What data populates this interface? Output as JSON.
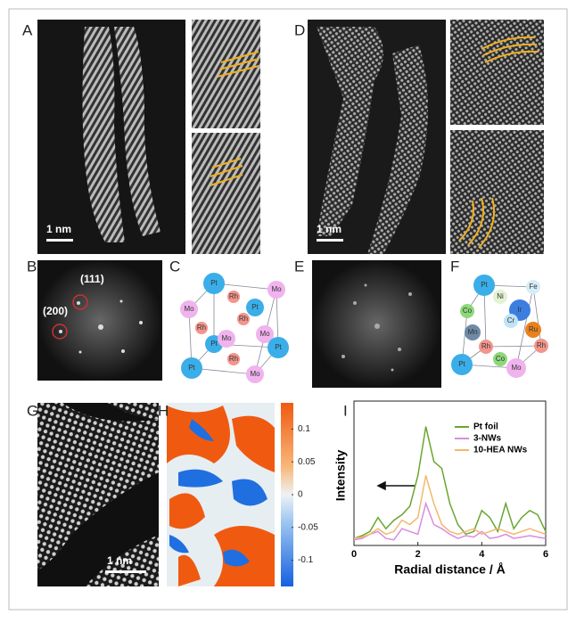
{
  "panel_labels": [
    "A",
    "B",
    "C",
    "D",
    "E",
    "F",
    "G",
    "H",
    "I"
  ],
  "scale_bars": [
    "1 nm",
    "1 nm",
    "1 nm"
  ],
  "fft_labels": [
    "(111)",
    "(200)"
  ],
  "crystal_c": [
    {
      "label": "Pt",
      "color": "#3aaee8"
    },
    {
      "label": "Mo",
      "color": "#f0b3ee"
    },
    {
      "label": "Rh",
      "color": "#f2958c"
    },
    {
      "label": "Mo",
      "color": "#f0b3ee"
    },
    {
      "label": "Pt",
      "color": "#3aaee8"
    },
    {
      "label": "Rh",
      "color": "#f2958c"
    },
    {
      "label": "Rh",
      "color": "#f2958c"
    },
    {
      "label": "Mo",
      "color": "#f0b3ee"
    },
    {
      "label": "Pt",
      "color": "#3aaee8"
    },
    {
      "label": "Mo",
      "color": "#f0b3ee"
    },
    {
      "label": "Rh",
      "color": "#f2958c"
    },
    {
      "label": "Pt",
      "color": "#3aaee8"
    },
    {
      "label": "Pt",
      "color": "#3aaee8"
    },
    {
      "label": "Mo",
      "color": "#f0b3ee"
    }
  ],
  "crystal_f": [
    {
      "label": "Pt",
      "color": "#3aaee8"
    },
    {
      "label": "Fe",
      "color": "#d6ecf7"
    },
    {
      "label": "Ni",
      "color": "#e3f2d2"
    },
    {
      "label": "Co",
      "color": "#8ed87a"
    },
    {
      "label": "Ir",
      "color": "#3c7ee0"
    },
    {
      "label": "Cr",
      "color": "#bfe4f7"
    },
    {
      "label": "Mn",
      "color": "#6f8aa6"
    },
    {
      "label": "Ru",
      "color": "#e8811e"
    },
    {
      "label": "Rh",
      "color": "#f2958c"
    },
    {
      "label": "Rh",
      "color": "#f2958c"
    },
    {
      "label": "Co",
      "color": "#8ed87a"
    },
    {
      "label": "Pt",
      "color": "#3aaee8"
    },
    {
      "label": "Mo",
      "color": "#f0b3ee"
    }
  ],
  "colorbar": {
    "lim": [
      -0.14,
      0.14
    ],
    "ticks": [
      0.1,
      0.05,
      0,
      -0.05,
      -0.1
    ]
  },
  "chart_data": {
    "type": "line",
    "xlabel": "Radial distance / Å",
    "ylabel": "Intensity",
    "x": [
      0,
      0.25,
      0.5,
      0.75,
      1,
      1.25,
      1.5,
      1.75,
      2,
      2.25,
      2.5,
      2.75,
      3,
      3.25,
      3.5,
      3.75,
      4,
      4.25,
      4.5,
      4.75,
      5,
      5.25,
      5.5,
      5.75,
      6
    ],
    "xlim": [
      0,
      6
    ],
    "xticks": [
      0,
      2,
      4,
      6
    ],
    "ylim": [
      0,
      1
    ],
    "legend": "upper right",
    "series": [
      {
        "name": "Pt foil",
        "color": "#6aa632",
        "values": [
          0.05,
          0.07,
          0.1,
          0.2,
          0.12,
          0.18,
          0.22,
          0.28,
          0.5,
          0.85,
          0.6,
          0.55,
          0.3,
          0.15,
          0.08,
          0.1,
          0.25,
          0.2,
          0.1,
          0.3,
          0.12,
          0.2,
          0.25,
          0.22,
          0.1
        ]
      },
      {
        "name": "3-NWs",
        "color": "#d98ce0",
        "values": [
          0.04,
          0.05,
          0.08,
          0.1,
          0.05,
          0.04,
          0.12,
          0.1,
          0.08,
          0.3,
          0.15,
          0.12,
          0.08,
          0.05,
          0.07,
          0.06,
          0.1,
          0.05,
          0.06,
          0.08,
          0.05,
          0.06,
          0.07,
          0.06,
          0.05
        ]
      },
      {
        "name": "10-HEA NWs",
        "color": "#f3b86b",
        "values": [
          0.05,
          0.06,
          0.08,
          0.12,
          0.08,
          0.1,
          0.18,
          0.15,
          0.2,
          0.5,
          0.3,
          0.15,
          0.1,
          0.08,
          0.1,
          0.12,
          0.08,
          0.1,
          0.12,
          0.1,
          0.08,
          0.1,
          0.12,
          0.1,
          0.08
        ]
      }
    ]
  }
}
